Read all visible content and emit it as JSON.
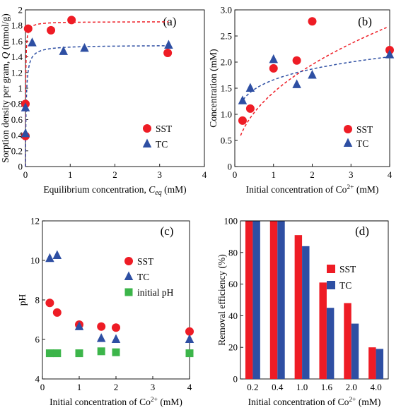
{
  "chart_data": [
    {
      "panel": "(a)",
      "type": "scatter",
      "xlabel": "Equilibrium concentration, C_eq (mM)",
      "xlabel_main": "Equilibrium concentration, ",
      "xlabel_var": "C",
      "xlabel_sub": "eq",
      "xlabel_unit": " (mM)",
      "ylabel": "Sorption density per gram, Q (mmol/g)",
      "ylabel_main": "Sorption density per gram, ",
      "ylabel_var": "Q",
      "ylabel_unit": " (mmol/g)",
      "xlim": [
        0,
        4
      ],
      "ylim": [
        0,
        2
      ],
      "xticks": [
        0,
        1,
        2,
        3,
        4
      ],
      "yticks": [
        0,
        0.2,
        0.4,
        0.6,
        0.8,
        1.0,
        1.2,
        1.4,
        1.6,
        1.8,
        2.0
      ],
      "ytick_labels": [
        "0",
        "0.2",
        "0.4",
        "0.6",
        "0.8",
        "1",
        "1.2",
        "1.4",
        "1.6",
        "1.8",
        "2"
      ],
      "legend_position": "right",
      "series": [
        {
          "name": "SST",
          "marker": "circle",
          "color": "#ee1c25",
          "x": [
            0.0,
            0.0,
            0.06,
            0.57,
            1.03,
            3.18
          ],
          "y": [
            0.39,
            0.8,
            1.76,
            1.74,
            1.87,
            1.45
          ],
          "fit": {
            "form": "langmuir",
            "qmax": 1.85,
            "K": 200
          }
        },
        {
          "name": "TC",
          "marker": "triangle",
          "color": "#2e4fa3",
          "x": [
            0.0,
            0.0,
            0.15,
            0.85,
            1.32,
            3.2
          ],
          "y": [
            0.42,
            0.75,
            1.58,
            1.47,
            1.51,
            1.55
          ],
          "fit": {
            "form": "langmuir",
            "qmax": 1.55,
            "K": 60
          }
        }
      ]
    },
    {
      "panel": "(b)",
      "type": "scatter",
      "xlabel_main": "Initial concentration of Co",
      "xlabel_sup": "2+",
      "xlabel_unit": "  (mM)",
      "ylabel": "Concentration (mM)",
      "xlim": [
        0,
        4
      ],
      "ylim": [
        0,
        3
      ],
      "xticks": [
        0,
        1,
        2,
        3,
        4
      ],
      "yticks": [
        0,
        0.5,
        1.0,
        1.5,
        2.0,
        2.5,
        3.0
      ],
      "ytick_labels": [
        "0",
        "0.5",
        "1.0",
        "1.5",
        "2.0",
        "2.5",
        "3.0"
      ],
      "legend_position": "bottom-right",
      "series": [
        {
          "name": "SST",
          "marker": "circle",
          "color": "#ee1c25",
          "x": [
            0.2,
            0.4,
            1.0,
            1.6,
            2.0,
            4.0
          ],
          "y": [
            0.88,
            1.11,
            1.88,
            2.03,
            2.78,
            2.23
          ],
          "fit": {
            "form": "power",
            "a": 1.42,
            "b": 0.46,
            "x0": 0.15
          }
        },
        {
          "name": "TC",
          "marker": "triangle",
          "color": "#2e4fa3",
          "x": [
            0.2,
            0.4,
            1.0,
            1.6,
            2.0,
            4.0
          ],
          "y": [
            1.26,
            1.5,
            2.05,
            1.57,
            1.75,
            2.14
          ],
          "fit": {
            "form": "power",
            "a": 1.66,
            "b": 0.17,
            "x0": 0.15
          }
        }
      ]
    },
    {
      "panel": "(c)",
      "type": "scatter",
      "xlabel_main": "Initial concentration of Co",
      "xlabel_sup": "2+",
      "xlabel_unit": "  (mM)",
      "ylabel": "pH",
      "xlim": [
        0,
        4
      ],
      "ylim": [
        4,
        12
      ],
      "xticks": [
        0,
        1,
        2,
        3,
        4
      ],
      "yticks": [
        4,
        6,
        8,
        10,
        12
      ],
      "legend_position": "right",
      "series": [
        {
          "name": "SST",
          "marker": "circle",
          "color": "#ee1c25",
          "x": [
            0.2,
            0.4,
            1.0,
            1.6,
            2.0,
            4.0
          ],
          "y": [
            7.85,
            7.36,
            6.75,
            6.65,
            6.6,
            6.4
          ]
        },
        {
          "name": "TC",
          "marker": "triangle",
          "color": "#2e4fa3",
          "x": [
            0.2,
            0.4,
            1.0,
            1.6,
            2.0,
            4.0
          ],
          "y": [
            10.1,
            10.25,
            6.65,
            6.05,
            6.0,
            6.0
          ]
        },
        {
          "name": "initial pH",
          "marker": "square",
          "color": "#3cb54a",
          "x": [
            0.2,
            0.4,
            1.0,
            1.6,
            2.0,
            4.0
          ],
          "y": [
            5.3,
            5.3,
            5.3,
            5.4,
            5.35,
            5.3
          ]
        }
      ]
    },
    {
      "panel": "(d)",
      "type": "bar",
      "xlabel_main": "Initial concentration of Co",
      "xlabel_sup": "2+",
      "xlabel_unit": "  (mM)",
      "ylabel": "Removal efficiency (%)",
      "categories": [
        "0.2",
        "0.4",
        "1.0",
        "1.6",
        "2.0",
        "4.0"
      ],
      "ylim": [
        0,
        100
      ],
      "yticks": [
        0,
        20,
        40,
        60,
        80,
        100
      ],
      "legend_position": "right",
      "series": [
        {
          "name": "SST",
          "color": "#ee1c25",
          "values": [
            100,
            100,
            91,
            61,
            48,
            20
          ]
        },
        {
          "name": "TC",
          "color": "#2e4fa3",
          "values": [
            100,
            100,
            84,
            45,
            35,
            19
          ]
        }
      ]
    }
  ]
}
